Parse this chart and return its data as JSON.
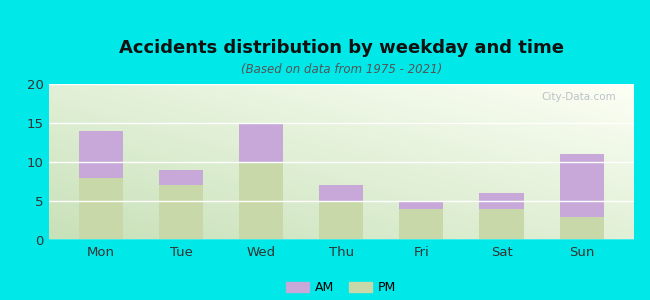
{
  "title": "Accidents distribution by weekday and time",
  "subtitle": "(Based on data from 1975 - 2021)",
  "categories": [
    "Mon",
    "Tue",
    "Wed",
    "Thu",
    "Fri",
    "Sat",
    "Sun"
  ],
  "pm_values": [
    8,
    7,
    10,
    5,
    4,
    4,
    3
  ],
  "am_values": [
    6,
    2,
    5,
    2,
    1,
    2,
    8
  ],
  "am_color": "#c8a8d8",
  "pm_color": "#c8d8a8",
  "ylim": [
    0,
    20
  ],
  "yticks": [
    0,
    5,
    10,
    15,
    20
  ],
  "background_color": "#00e8e8",
  "bar_width": 0.55,
  "figsize": [
    6.5,
    3.0
  ],
  "dpi": 100
}
